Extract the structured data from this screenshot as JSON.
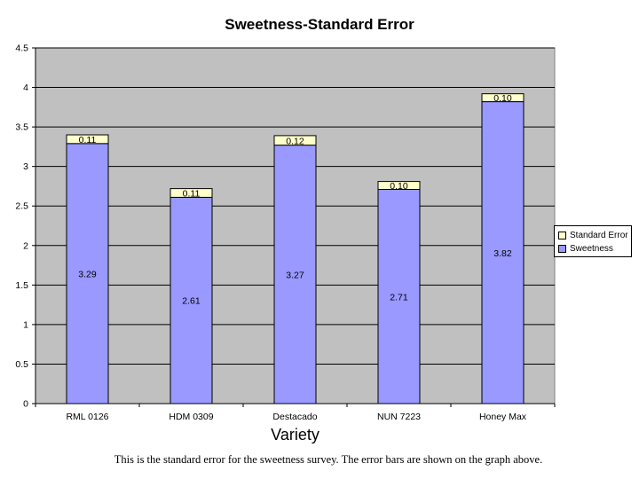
{
  "chart_data": {
    "type": "bar",
    "stacked": true,
    "title": "Sweetness-Standard Error",
    "xlabel": "Variety",
    "ylabel": "",
    "ylim": [
      0,
      4.5
    ],
    "yticks": [
      "0",
      "0.5",
      "1",
      "1.5",
      "2",
      "2.5",
      "3",
      "3.5",
      "4",
      "4.5"
    ],
    "categories": [
      "RML 0126",
      "HDM 0309",
      "Destacado",
      "NUN 7223",
      "Honey Max"
    ],
    "series": [
      {
        "name": "Sweetness",
        "color": "#9999ff",
        "values": [
          3.29,
          2.61,
          3.27,
          2.71,
          3.82
        ],
        "labels": [
          "3.29",
          "2.61",
          "3.27",
          "2.71",
          "3.82"
        ]
      },
      {
        "name": "Standard Error",
        "color": "#ffffcc",
        "values": [
          0.11,
          0.11,
          0.12,
          0.1,
          0.1
        ],
        "labels": [
          "0.11",
          "0.11",
          "0.12",
          "0.10",
          "0.10"
        ]
      }
    ],
    "legend": {
      "placement": "right",
      "entries": [
        "Standard Error",
        "Sweetness"
      ]
    },
    "plot_background": "#c0c0c0",
    "grid": true
  },
  "caption": "This is the standard error for the sweetness survey. The error bars are shown on the graph above."
}
